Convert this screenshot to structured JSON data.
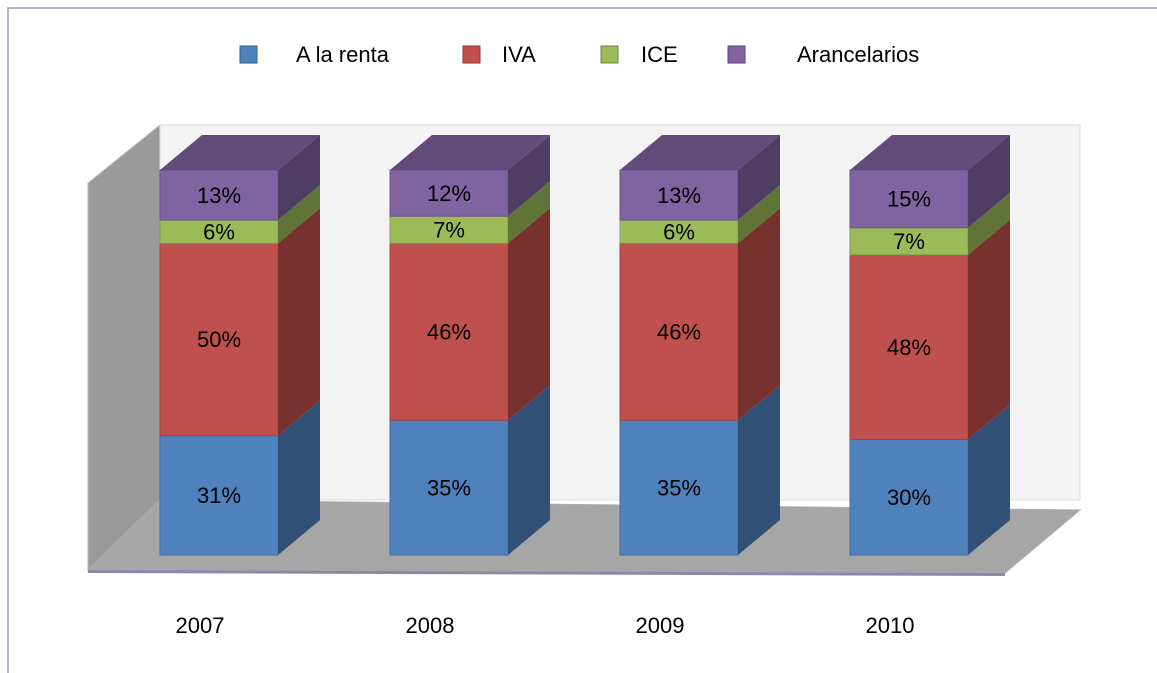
{
  "chart_data": {
    "type": "bar3d_stacked",
    "categories": [
      "2007",
      "2008",
      "2009",
      "2010"
    ],
    "series": [
      {
        "name": "A la renta",
        "color": "#4f81bd",
        "values": [
          31,
          35,
          35,
          30
        ],
        "value_labels": [
          "31%",
          "35%",
          "35%",
          "30%"
        ]
      },
      {
        "name": "IVA",
        "color": "#c0504d",
        "values": [
          50,
          46,
          46,
          48
        ],
        "value_labels": [
          "50%",
          "46%",
          "46%",
          "48%"
        ]
      },
      {
        "name": "ICE",
        "color": "#9bbb59",
        "values": [
          6,
          7,
          6,
          7
        ],
        "value_labels": [
          "6%",
          "7%",
          "6%",
          "7%"
        ]
      },
      {
        "name": "Arancelarios",
        "color": "#8064a2",
        "values": [
          13,
          12,
          13,
          15
        ],
        "value_labels": [
          "13%",
          "12%",
          "13%",
          "15%"
        ]
      }
    ],
    "legend": "top"
  }
}
